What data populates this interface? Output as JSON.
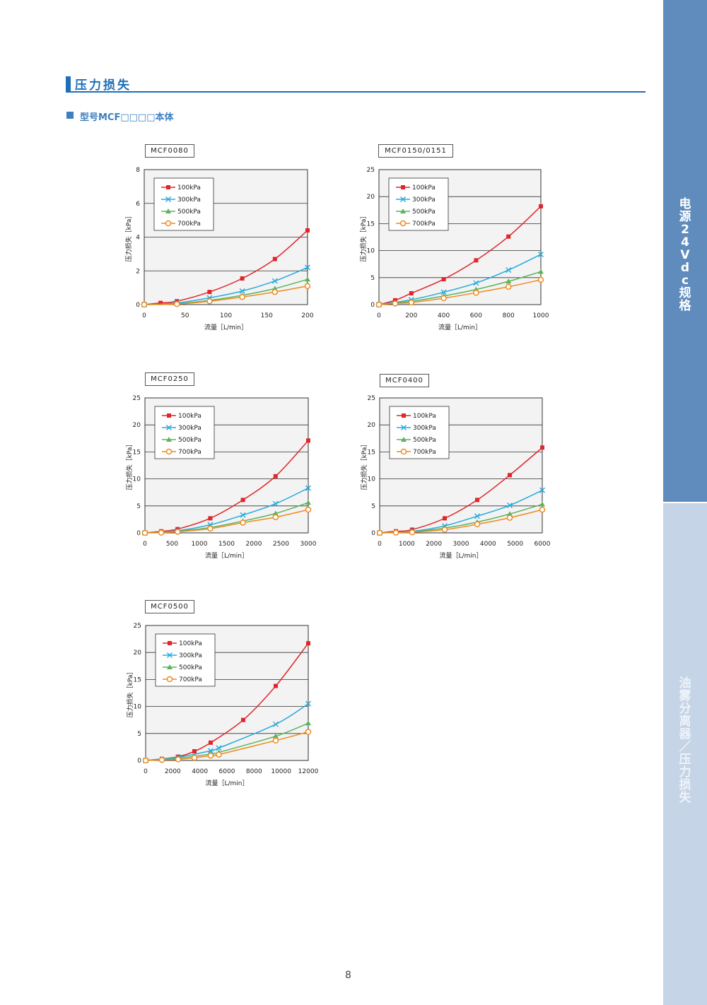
{
  "section": {
    "title": "压力损失",
    "subtitle": "型号MCF□□□□本体"
  },
  "sidebar": {
    "top_text": "电源24Vdc规格",
    "bottom_text": "油雾分离器／压力损失"
  },
  "page_number": "8",
  "colors": {
    "accent": "#1d6fb8",
    "sidebar_top": "#5f8cbd",
    "sidebar_bottom": "#c5d4e6",
    "s100": "#e0262a",
    "s300": "#26a9dd",
    "s500": "#5cb35c",
    "s700": "#ef8a1c"
  },
  "chart_data": [
    {
      "type": "line",
      "model": "MCF0080",
      "xlabel": "流量［L/min］",
      "ylabel": "压力损失［kPa］",
      "xlim": [
        0,
        200
      ],
      "ylim": [
        0,
        8
      ],
      "xticks": [
        0,
        50,
        100,
        150,
        200
      ],
      "yticks": [
        0,
        2,
        4,
        6,
        8
      ],
      "legend": "top-left",
      "grid": "horizontal",
      "series": [
        {
          "name": "100kPa",
          "color": "#e0262a",
          "marker": "square",
          "x": [
            0,
            20,
            40,
            80,
            120,
            160,
            200
          ],
          "y": [
            0,
            0.1,
            0.2,
            0.75,
            1.55,
            2.7,
            4.4
          ]
        },
        {
          "name": "300kPa",
          "color": "#26a9dd",
          "marker": "x",
          "x": [
            0,
            40,
            80,
            120,
            160,
            200
          ],
          "y": [
            0,
            0.1,
            0.4,
            0.8,
            1.4,
            2.2
          ]
        },
        {
          "name": "500kPa",
          "color": "#5cb35c",
          "marker": "triangle",
          "x": [
            0,
            40,
            80,
            120,
            160,
            200
          ],
          "y": [
            0,
            0.05,
            0.25,
            0.55,
            0.95,
            1.5
          ]
        },
        {
          "name": "700kPa",
          "color": "#ef8a1c",
          "marker": "circle",
          "x": [
            0,
            40,
            80,
            120,
            160,
            200
          ],
          "y": [
            0,
            0.03,
            0.2,
            0.45,
            0.75,
            1.1
          ]
        }
      ]
    },
    {
      "type": "line",
      "model": "MCF0150/0151",
      "xlabel": "流量［L/min］",
      "ylabel": "压力损失［kPa］",
      "xlim": [
        0,
        1000
      ],
      "ylim": [
        0,
        25
      ],
      "xticks": [
        0,
        200,
        400,
        600,
        800,
        1000
      ],
      "yticks": [
        0,
        5,
        10,
        15,
        20,
        25
      ],
      "legend": "top-left",
      "grid": "horizontal",
      "series": [
        {
          "name": "100kPa",
          "color": "#e0262a",
          "marker": "square",
          "x": [
            0,
            100,
            200,
            400,
            600,
            800,
            1000
          ],
          "y": [
            0,
            0.8,
            2.1,
            4.7,
            8.2,
            12.6,
            18.2
          ]
        },
        {
          "name": "300kPa",
          "color": "#26a9dd",
          "marker": "x",
          "x": [
            0,
            200,
            400,
            600,
            800,
            1000
          ],
          "y": [
            0,
            0.9,
            2.3,
            4.0,
            6.4,
            9.3
          ]
        },
        {
          "name": "500kPa",
          "color": "#5cb35c",
          "marker": "triangle",
          "x": [
            0,
            200,
            400,
            600,
            800,
            1000
          ],
          "y": [
            0,
            0.6,
            1.6,
            2.8,
            4.3,
            6.1
          ]
        },
        {
          "name": "700kPa",
          "color": "#ef8a1c",
          "marker": "circle",
          "x": [
            0,
            100,
            200,
            400,
            600,
            800,
            1000
          ],
          "y": [
            0,
            0.2,
            0.4,
            1.2,
            2.2,
            3.3,
            4.6
          ]
        }
      ]
    },
    {
      "type": "line",
      "model": "MCF0250",
      "xlabel": "流量［L/min］",
      "ylabel": "压力损失［kPa］",
      "xlim": [
        0,
        3000
      ],
      "ylim": [
        0,
        25
      ],
      "xticks": [
        0,
        500,
        1000,
        1500,
        2000,
        2500,
        3000
      ],
      "yticks": [
        0,
        5,
        10,
        15,
        20,
        25
      ],
      "legend": "top-left",
      "grid": "horizontal",
      "series": [
        {
          "name": "100kPa",
          "color": "#e0262a",
          "marker": "square",
          "x": [
            0,
            300,
            600,
            1200,
            1800,
            2400,
            3000
          ],
          "y": [
            0,
            0.3,
            0.7,
            2.7,
            6.1,
            10.5,
            17.1
          ]
        },
        {
          "name": "300kPa",
          "color": "#26a9dd",
          "marker": "x",
          "x": [
            0,
            600,
            1200,
            1800,
            2400,
            3000
          ],
          "y": [
            0,
            0.4,
            1.5,
            3.3,
            5.4,
            8.3
          ]
        },
        {
          "name": "500kPa",
          "color": "#5cb35c",
          "marker": "triangle",
          "x": [
            0,
            600,
            1200,
            1800,
            2400,
            3000
          ],
          "y": [
            0,
            0.3,
            1.0,
            2.2,
            3.6,
            5.6
          ]
        },
        {
          "name": "700kPa",
          "color": "#ef8a1c",
          "marker": "circle",
          "x": [
            0,
            300,
            600,
            1200,
            1800,
            2400,
            3000
          ],
          "y": [
            0,
            0.05,
            0.2,
            0.8,
            1.9,
            2.9,
            4.3
          ]
        }
      ]
    },
    {
      "type": "line",
      "model": "MCF0400",
      "xlabel": "流量［L/min］",
      "ylabel": "压力损失［kPa］",
      "xlim": [
        0,
        6000
      ],
      "ylim": [
        0,
        25
      ],
      "xticks": [
        0,
        1000,
        2000,
        3000,
        4000,
        5000,
        6000
      ],
      "yticks": [
        0,
        5,
        10,
        15,
        20,
        25
      ],
      "legend": "top-left",
      "grid": "horizontal",
      "series": [
        {
          "name": "100kPa",
          "color": "#e0262a",
          "marker": "square",
          "x": [
            0,
            600,
            1200,
            2400,
            3600,
            4800,
            6000
          ],
          "y": [
            0,
            0.3,
            0.6,
            2.7,
            6.1,
            10.7,
            15.8
          ]
        },
        {
          "name": "300kPa",
          "color": "#26a9dd",
          "marker": "x",
          "x": [
            0,
            1200,
            2400,
            3600,
            4800,
            6000
          ],
          "y": [
            0,
            0.3,
            1.3,
            3.1,
            5.1,
            7.9
          ]
        },
        {
          "name": "500kPa",
          "color": "#5cb35c",
          "marker": "triangle",
          "x": [
            0,
            1200,
            2400,
            3600,
            4800,
            6000
          ],
          "y": [
            0,
            0.2,
            0.9,
            2.0,
            3.5,
            5.3
          ]
        },
        {
          "name": "700kPa",
          "color": "#ef8a1c",
          "marker": "circle",
          "x": [
            0,
            600,
            1200,
            2400,
            3600,
            4800,
            6000
          ],
          "y": [
            0,
            0.05,
            0.1,
            0.6,
            1.6,
            2.8,
            4.3
          ]
        }
      ]
    },
    {
      "type": "line",
      "model": "MCF0500",
      "xlabel": "流量［L/min］",
      "ylabel": "压力损失［kPa］",
      "xlim": [
        0,
        12000
      ],
      "ylim": [
        0,
        25
      ],
      "xticks": [
        0,
        2000,
        4000,
        6000,
        8000,
        10000,
        12000
      ],
      "yticks": [
        0,
        5,
        10,
        15,
        20,
        25
      ],
      "legend": "top-left",
      "grid": "horizontal",
      "series": [
        {
          "name": "100kPa",
          "color": "#e0262a",
          "marker": "square",
          "x": [
            0,
            1200,
            2400,
            3600,
            4800,
            7200,
            9600,
            12000
          ],
          "y": [
            0,
            0.3,
            0.7,
            1.7,
            3.3,
            7.5,
            13.8,
            21.7
          ]
        },
        {
          "name": "300kPa",
          "color": "#26a9dd",
          "marker": "x",
          "x": [
            0,
            2400,
            4800,
            5400,
            9600,
            12000
          ],
          "y": [
            0,
            0.6,
            1.8,
            2.3,
            6.7,
            10.5
          ]
        },
        {
          "name": "500kPa",
          "color": "#5cb35c",
          "marker": "triangle",
          "x": [
            0,
            2400,
            4800,
            5400,
            9600,
            12000
          ],
          "y": [
            0,
            0.4,
            1.2,
            1.5,
            4.5,
            6.9
          ]
        },
        {
          "name": "700kPa",
          "color": "#ef8a1c",
          "marker": "circle",
          "x": [
            0,
            1200,
            2400,
            3600,
            4800,
            5400,
            9600,
            12000
          ],
          "y": [
            0,
            0.1,
            0.2,
            0.5,
            0.9,
            1.1,
            3.7,
            5.3
          ]
        }
      ]
    }
  ]
}
